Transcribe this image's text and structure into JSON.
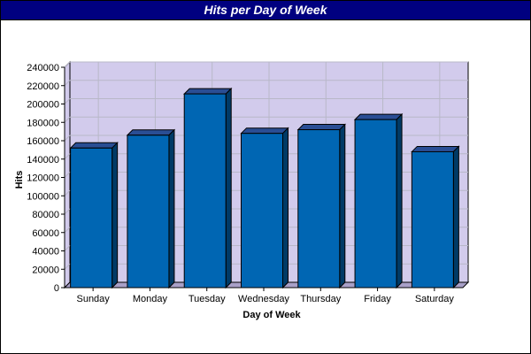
{
  "chart_data": {
    "type": "bar",
    "title": "Hits per Day of Week",
    "xlabel": "Day of Week",
    "ylabel": "Hits",
    "categories": [
      "Sunday",
      "Monday",
      "Tuesday",
      "Wednesday",
      "Thursday",
      "Friday",
      "Saturday"
    ],
    "values": [
      152000,
      166000,
      211000,
      168000,
      172000,
      183000,
      148000
    ],
    "ylim": [
      0,
      240000
    ],
    "yticks": [
      "0",
      "20000",
      "40000",
      "60000",
      "80000",
      "100000",
      "120000",
      "140000",
      "160000",
      "180000",
      "200000",
      "220000",
      "240000"
    ],
    "grid": true,
    "legend": "none",
    "colors": {
      "title_bar": "#000080",
      "plot_background": "#d2cbec",
      "grid": "#b8b8c8",
      "bar_front": "#0066b3",
      "bar_top": "#2a4e94",
      "bar_side": "#003a66",
      "bar_edge": "#000000",
      "floor": "#a8a0c8"
    }
  }
}
